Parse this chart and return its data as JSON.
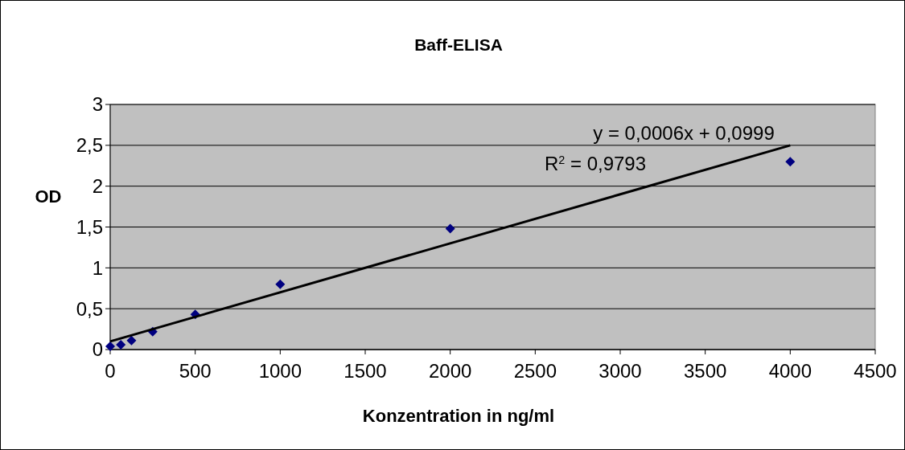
{
  "chart_data": {
    "type": "scatter",
    "title": "Baff-ELISA",
    "xlabel": "Konzentration in ng/ml",
    "ylabel": "OD",
    "series": [
      {
        "color": "#000080",
        "x": [
          0,
          62.5,
          125,
          250,
          500,
          1000,
          2000,
          4000
        ],
        "values": [
          0.04,
          0.06,
          0.11,
          0.22,
          0.43,
          0.8,
          1.48,
          2.3
        ],
        "marker": "diamond"
      },
      {
        "type": "line",
        "color": "#000000",
        "x": [
          0,
          4000
        ],
        "values": [
          0.1,
          2.5
        ],
        "marker": "none",
        "line_style": "solid"
      }
    ],
    "xlim": [
      0,
      4500
    ],
    "xticks": [
      0,
      500,
      1000,
      1500,
      2000,
      2500,
      3000,
      3500,
      4000,
      4500
    ],
    "ylim": [
      0,
      3
    ],
    "yticks": [
      0,
      {
        "value": 0.5,
        "label": "0,5"
      },
      1,
      {
        "value": 1.5,
        "label": "1,5"
      },
      2,
      {
        "value": 2.5,
        "label": "2,5"
      },
      3
    ],
    "grid": "y",
    "annotations": [
      "y = 0,0006x + 0,0999",
      "R$^{2}$ = 0,9793"
    ]
  }
}
